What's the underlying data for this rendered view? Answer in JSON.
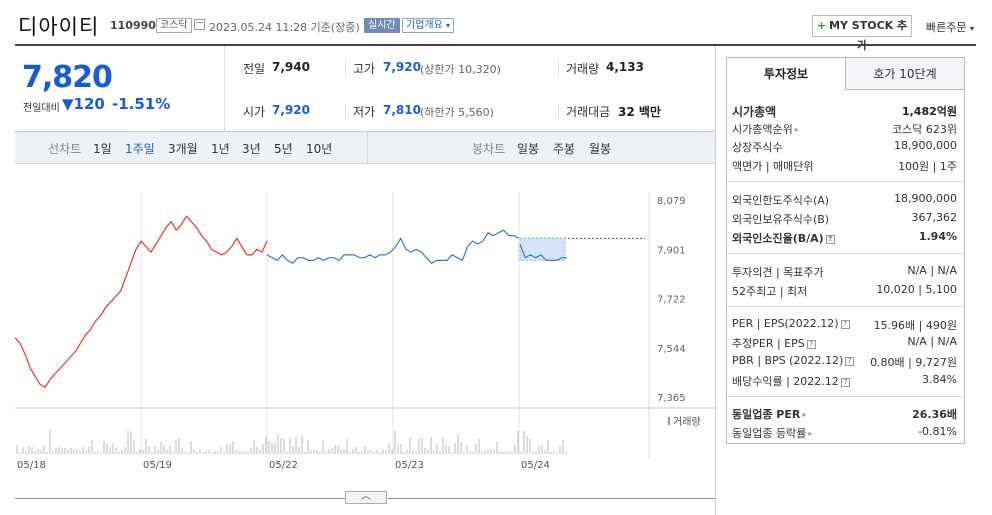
{
  "header": {
    "company_name": "디아이티",
    "stock_code": "110990",
    "market_badge": "코스닥",
    "datetime": "2023.05.24 11:28 기준(장중)",
    "realtime_badge": "실시간",
    "company_overview": "기업개요",
    "mystock_label": "MY STOCK 추가",
    "quick_order": "빠른주문"
  },
  "price": {
    "current": "7,820",
    "change_label": "전일대비",
    "change_value": "120",
    "change_pct": "-1.51%",
    "prev_close_label": "전일",
    "prev_close": "7,940",
    "high_label": "고가",
    "high": "7,920",
    "upper_limit": "(상한가 10,320)",
    "volume_label": "거래량",
    "volume": "4,133",
    "open_label": "시가",
    "open": "7,920",
    "low_label": "저가",
    "low": "7,810",
    "lower_limit": "(하한가 5,560)",
    "amount_label": "거래대금",
    "amount": "32 백만"
  },
  "chart_tabs": {
    "line_label": "선차트",
    "periods": [
      "1일",
      "1주일",
      "3개월",
      "1년",
      "3년",
      "5년",
      "10년"
    ],
    "active_period": "1주일",
    "candle_label": "봉차트",
    "candle_periods": [
      "일봉",
      "주봉",
      "월봉"
    ]
  },
  "chart_data": {
    "type": "line",
    "y_ticks": [
      "8,079",
      "7,901",
      "7,722",
      "7,544",
      "7,365"
    ],
    "ylim": [
      7365,
      8079
    ],
    "x_ticks": [
      "05/18",
      "05/19",
      "05/22",
      "05/23",
      "05/24"
    ],
    "volume_label": "거래량",
    "reference_price": 7940,
    "series": [
      {
        "color": "#e33",
        "values": [
          7580,
          7560,
          7520,
          7470,
          7440,
          7410,
          7400,
          7430,
          7450,
          7470,
          7490,
          7510,
          7530,
          7560,
          7590,
          7610,
          7640,
          7660,
          7690,
          7710,
          7730,
          7750,
          7800,
          7850,
          7900,
          7930,
          7910,
          7890,
          7920,
          7950,
          7980,
          8000,
          7970,
          7990,
          8020,
          8000,
          7980,
          7950,
          7930,
          7900,
          7890,
          7880,
          7890,
          7910,
          7940,
          7910,
          7880,
          7880,
          7900,
          7890,
          7930
        ]
      },
      {
        "color": "#3a78d0",
        "values": [
          7880,
          7870,
          7860,
          7880,
          7860,
          7850,
          7870,
          7870,
          7860,
          7860,
          7870,
          7860,
          7870,
          7870,
          7860,
          7880,
          7880,
          7880,
          7870,
          7870,
          7880,
          7870,
          7880,
          7880,
          7890,
          7910,
          7940,
          7900,
          7890,
          7900,
          7890,
          7870,
          7850,
          7860,
          7860,
          7860,
          7880,
          7870,
          7860,
          7910,
          7930,
          7920,
          7930,
          7960,
          7950,
          7960,
          7970,
          7950,
          7950,
          7940
        ]
      },
      {
        "color": "#3a78d0",
        "values": [
          7920,
          7870,
          7880,
          7870,
          7880,
          7860,
          7860,
          7860,
          7870,
          7870
        ]
      }
    ]
  },
  "right_panel": {
    "tab_invest": "투자정보",
    "tab_hoga": "호가 10단계",
    "rows": [
      {
        "label": "시가총액",
        "value": "1,482억원"
      },
      {
        "label": "시가총액순위",
        "value": "코스닥 623위"
      },
      {
        "label": "상장주식수",
        "value": "18,900,000"
      },
      {
        "label": "액면가 | 매매단위",
        "value": "100원 | 1주"
      },
      {
        "label": "외국인한도주식수(A)",
        "value": "18,900,000"
      },
      {
        "label": "외국인보유주식수(B)",
        "value": "367,362"
      },
      {
        "label": "외국인소진율(B/A)",
        "value": "1.94%"
      },
      {
        "label": "투자의견 | 목표주가",
        "value": "N/A | N/A"
      },
      {
        "label": "52주최고 | 최저",
        "value": "10,020 | 5,100"
      },
      {
        "label": "PER | EPS(2022.12)",
        "value": "15.96배 | 490원"
      },
      {
        "label": "추정PER | EPS",
        "value": "N/A | N/A"
      },
      {
        "label": "PBR | BPS (2022.12)",
        "value": "0.80배 | 9,727원"
      },
      {
        "label": "배당수익률 | 2022.12",
        "value": "3.84%"
      },
      {
        "label": "동일업종 PER",
        "value": "26.36배"
      },
      {
        "label": "동일업종 등락률",
        "value": "-0.81%"
      }
    ]
  }
}
